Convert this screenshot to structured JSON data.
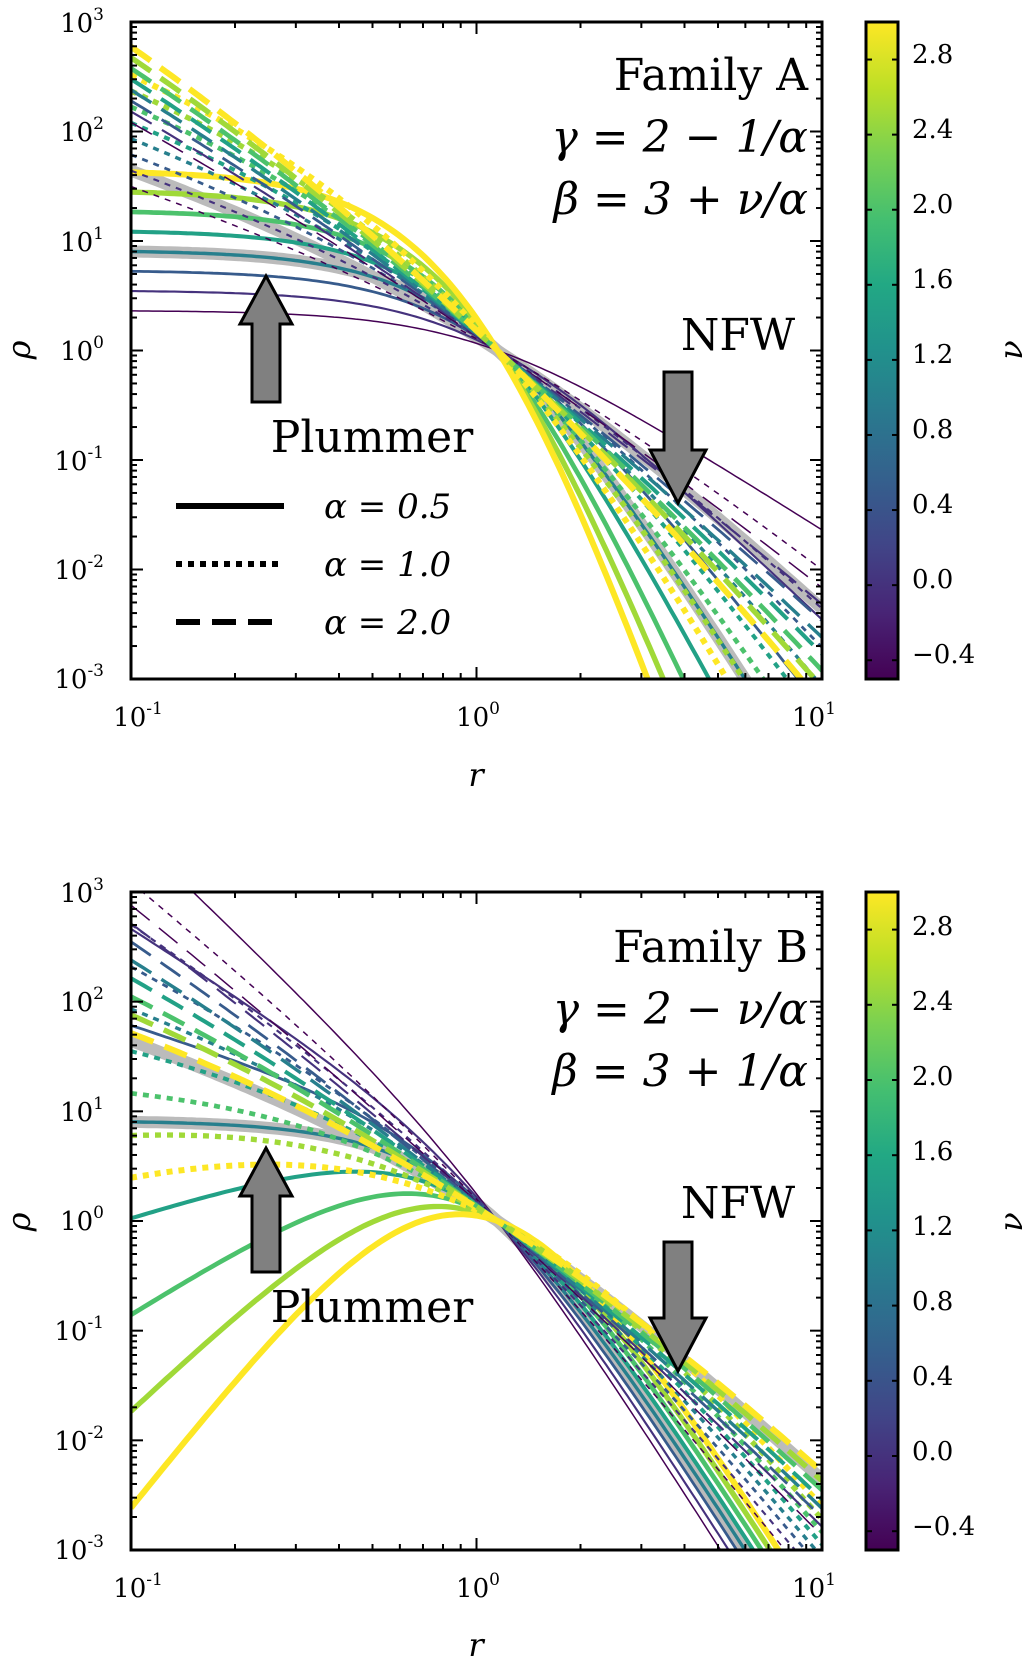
{
  "colors": {
    "viridis": [
      "#440154",
      "#482475",
      "#414487",
      "#355f8d",
      "#2a788e",
      "#21918c",
      "#22a884",
      "#44bf70",
      "#7ad151",
      "#bddf26",
      "#fde725"
    ],
    "gray_ref": "#bbbbbb",
    "arrow_fill": "#808080"
  },
  "chart_data": [
    {
      "type": "line",
      "title": "Family A",
      "equations": [
        "γ = 2 − 1/α",
        "β = 3 + ν/α"
      ],
      "xlabel": "r",
      "ylabel": "ρ",
      "xscale": "log",
      "yscale": "log",
      "xlim": [
        0.1,
        10
      ],
      "ylim": [
        0.001,
        1000
      ],
      "xticks": [
        {
          "base": "10",
          "exp": "-1"
        },
        {
          "base": "10",
          "exp": "0"
        },
        {
          "base": "10",
          "exp": "1"
        }
      ],
      "yticks": [
        {
          "base": "10",
          "exp": "-3"
        },
        {
          "base": "10",
          "exp": "-2"
        },
        {
          "base": "10",
          "exp": "-1"
        },
        {
          "base": "10",
          "exp": "0"
        },
        {
          "base": "10",
          "exp": "1"
        },
        {
          "base": "10",
          "exp": "2"
        },
        {
          "base": "10",
          "exp": "3"
        }
      ],
      "colorbar": {
        "label": "ν",
        "min": -0.5,
        "max": 3.0,
        "ticks": [
          "−0.4",
          "0.0",
          "0.4",
          "0.8",
          "1.2",
          "1.6",
          "2.0",
          "2.4",
          "2.8"
        ],
        "tick_values": [
          -0.4,
          0.0,
          0.4,
          0.8,
          1.2,
          1.6,
          2.0,
          2.4,
          2.8
        ]
      },
      "legend": [
        {
          "label": "α = 0.5",
          "style": "solid"
        },
        {
          "label": "α = 1.0",
          "style": "dotted"
        },
        {
          "label": "α = 2.0",
          "style": "dashed"
        }
      ],
      "annotations": [
        {
          "text": "Plummer",
          "points_to_r": 0.25,
          "direction": "up"
        },
        {
          "text": "NFW",
          "points_to_r": 4.0,
          "direction": "down"
        }
      ],
      "family": "A",
      "alphas": [
        0.5,
        1.0,
        2.0
      ],
      "nus": [
        -0.5,
        0.0,
        0.5,
        1.0,
        1.5,
        2.0,
        2.5,
        3.0
      ],
      "reference_curves": [
        "Plummer",
        "NFW"
      ]
    },
    {
      "type": "line",
      "title": "Family B",
      "equations": [
        "γ = 2 − ν/α",
        "β = 3 + 1/α"
      ],
      "xlabel": "r",
      "ylabel": "ρ",
      "xscale": "log",
      "yscale": "log",
      "xlim": [
        0.1,
        10
      ],
      "ylim": [
        0.001,
        1000
      ],
      "xticks": [
        {
          "base": "10",
          "exp": "-1"
        },
        {
          "base": "10",
          "exp": "0"
        },
        {
          "base": "10",
          "exp": "1"
        }
      ],
      "yticks": [
        {
          "base": "10",
          "exp": "-3"
        },
        {
          "base": "10",
          "exp": "-2"
        },
        {
          "base": "10",
          "exp": "-1"
        },
        {
          "base": "10",
          "exp": "0"
        },
        {
          "base": "10",
          "exp": "1"
        },
        {
          "base": "10",
          "exp": "2"
        },
        {
          "base": "10",
          "exp": "3"
        }
      ],
      "colorbar": {
        "label": "ν",
        "min": -0.5,
        "max": 3.0,
        "ticks": [
          "−0.4",
          "0.0",
          "0.4",
          "0.8",
          "1.2",
          "1.6",
          "2.0",
          "2.4",
          "2.8"
        ],
        "tick_values": [
          -0.4,
          0.0,
          0.4,
          0.8,
          1.2,
          1.6,
          2.0,
          2.4,
          2.8
        ]
      },
      "annotations": [
        {
          "text": "Plummer",
          "points_to_r": 0.25,
          "direction": "up"
        },
        {
          "text": "NFW",
          "points_to_r": 4.0,
          "direction": "down"
        }
      ],
      "family": "B",
      "alphas": [
        0.5,
        1.0,
        2.0
      ],
      "nus": [
        -0.5,
        0.0,
        0.5,
        1.0,
        1.5,
        2.0,
        2.5,
        3.0
      ],
      "reference_curves": [
        "Plummer",
        "NFW"
      ]
    }
  ]
}
